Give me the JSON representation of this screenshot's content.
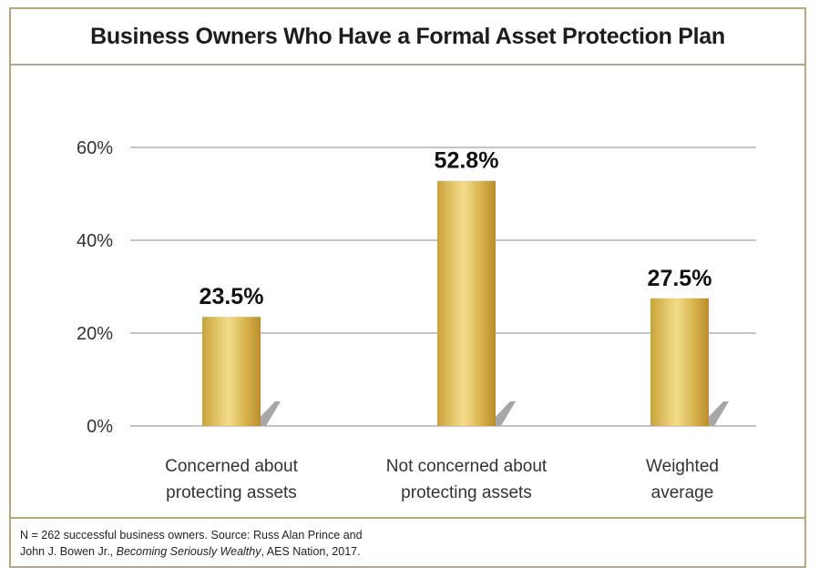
{
  "title": "Business Owners Who Have a Formal Asset Protection Plan",
  "chart_data": {
    "type": "bar",
    "title": "Business Owners Who Have a Formal Asset Protection Plan",
    "categories": [
      [
        "Concerned about",
        "protecting assets"
      ],
      [
        "Not concerned about",
        "protecting assets"
      ],
      [
        "Weighted",
        "average"
      ]
    ],
    "values": [
      23.5,
      52.8,
      27.5
    ],
    "value_labels": [
      "23.5%",
      "52.8%",
      "27.5%"
    ],
    "ylim": [
      0,
      60
    ],
    "yticks": [
      0,
      20,
      40,
      60
    ],
    "ytick_labels": [
      "0%",
      "20%",
      "40%",
      "60%"
    ],
    "grid": true,
    "xlabel": "",
    "ylabel": ""
  },
  "footer": {
    "line1": "N = 262 successful business owners. Source: Russ Alan Prince and",
    "line2_prefix": "John J. Bowen Jr., ",
    "line2_title": "Becoming Seriously Wealthy",
    "line2_suffix": ", AES Nation, 2017."
  },
  "colors": {
    "bar_gradient": [
      "#c9a23c",
      "#f3dd8a",
      "#d8b24c",
      "#b88e2a"
    ],
    "shadow": "#a7a7a7",
    "grid": "#c4c4c4",
    "border": "#b5a886"
  }
}
